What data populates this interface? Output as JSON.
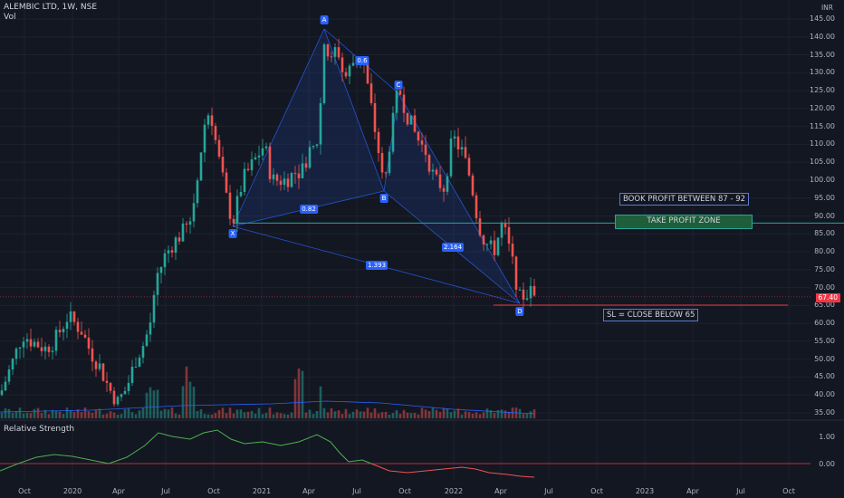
{
  "header": {
    "symbol": "ALEMBIC LTD, 1W, NSE",
    "volume_label": "Vol"
  },
  "axis": {
    "currency": "INR",
    "price_ticks": [
      "145.00",
      "140.00",
      "135.00",
      "130.00",
      "125.00",
      "120.00",
      "115.00",
      "110.00",
      "105.00",
      "100.00",
      "95.00",
      "90.00",
      "85.00",
      "80.00",
      "75.00",
      "70.00",
      "65.00",
      "60.00",
      "55.00",
      "50.00",
      "45.00",
      "40.00",
      "35.00"
    ],
    "current_price": "67.40",
    "x_ticks": [
      "Oct",
      "2020",
      "Apr",
      "Jul",
      "Oct",
      "2021",
      "Apr",
      "Jul",
      "Oct",
      "2022",
      "Apr",
      "Jul",
      "Oct",
      "2023",
      "Apr",
      "Jul",
      "Oct"
    ],
    "rs_ticks": [
      "1.00",
      "0.00"
    ]
  },
  "pattern": {
    "points": [
      "X",
      "A",
      "B",
      "C",
      "D"
    ],
    "extra_point": "0.6",
    "ratios": [
      "0.82",
      "2.164",
      "1.393"
    ]
  },
  "annotations": {
    "book_profit": "BOOK PROFIT BETWEEN 87 - 92",
    "take_profit_zone": "TAKE PROFIT ZONE",
    "stop_loss": "SL = CLOSE BELOW 65"
  },
  "indicator": {
    "name": "Relative Strength"
  },
  "colors": {
    "bg": "#131722",
    "up": "#26a69a",
    "down": "#ef5350",
    "pattern": "#2962ff",
    "resistance": "#26a69a",
    "stop": "#f23645"
  },
  "chart_data": {
    "type": "candlestick",
    "title": "ALEMBIC LTD, 1W, NSE",
    "ylim": [
      35,
      145
    ],
    "pivots": [
      {
        "label": "X",
        "date": "2020-11",
        "price": 88
      },
      {
        "label": "A",
        "date": "2021-04",
        "price": 144
      },
      {
        "label": "B",
        "date": "2021-08",
        "price": 97
      },
      {
        "label": "C",
        "date": "2021-09",
        "price": 126
      },
      {
        "label": "D",
        "date": "2022-05",
        "price": 65
      }
    ],
    "ratios": [
      "0.82",
      "2.164",
      "1.393"
    ],
    "take_profit_zone": [
      87,
      92
    ],
    "stop_loss": 65,
    "last_price": 67.4
  }
}
